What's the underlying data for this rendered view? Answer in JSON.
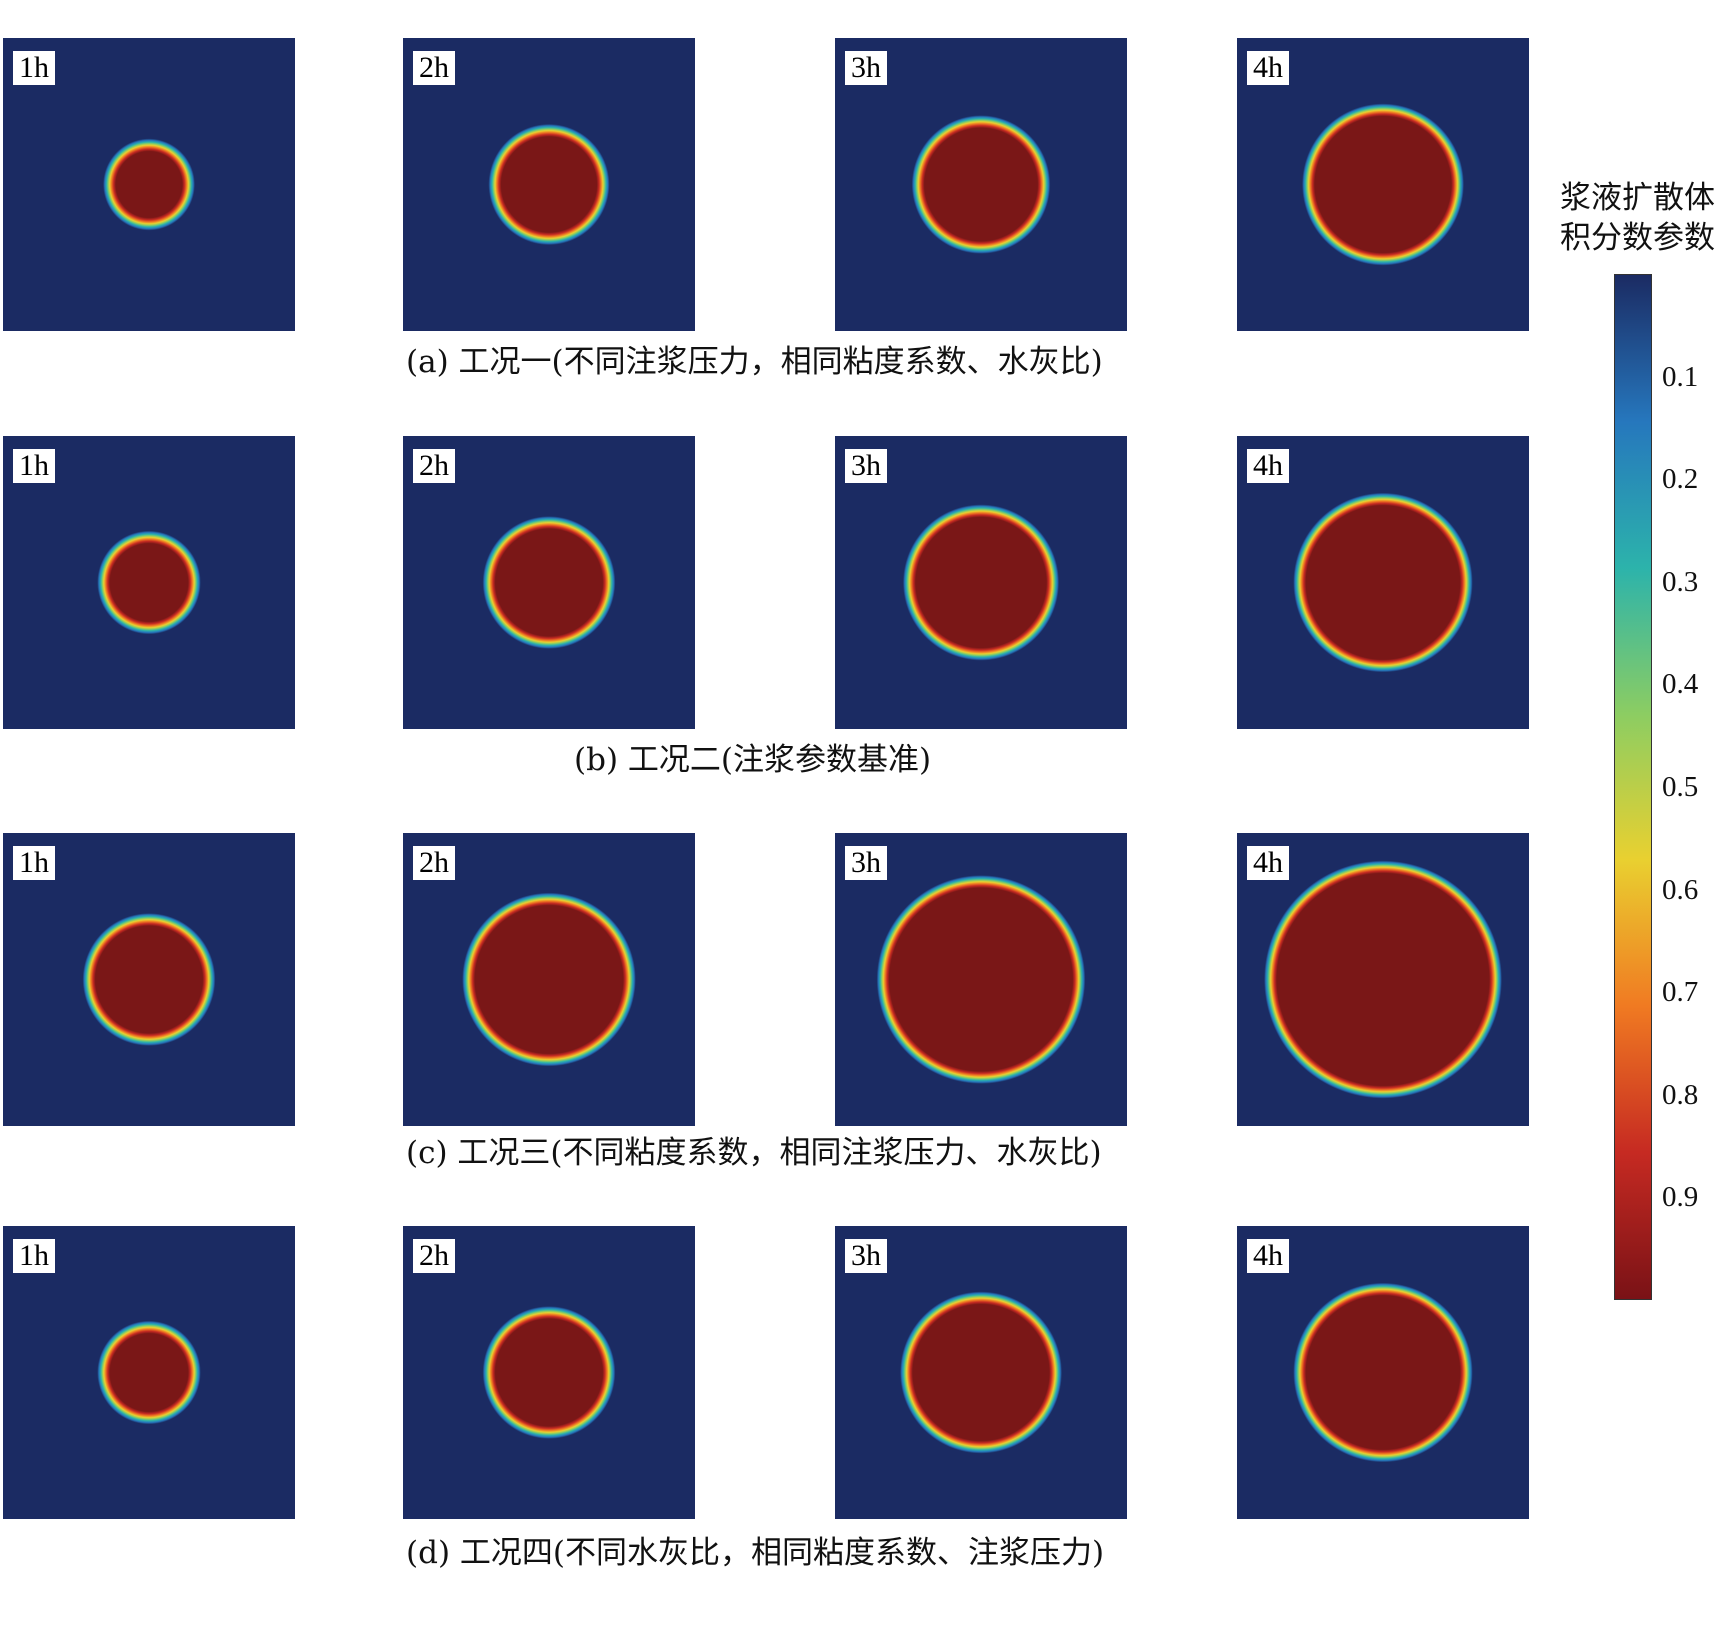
{
  "colors": {
    "background_phase": "#1b2b63",
    "grout_phase": "#7a1717",
    "colormap": [
      "#7a1216",
      "#c62a22",
      "#f07a22",
      "#e9d030",
      "#8ccd62",
      "#2cb3ab",
      "#2677bd",
      "#1b2b63"
    ]
  },
  "colorbar": {
    "title": "浆液扩散体积分数参数",
    "ticks": [
      "0.1",
      "0.2",
      "0.3",
      "0.4",
      "0.5",
      "0.6",
      "0.7",
      "0.8",
      "0.9"
    ],
    "tick_values": [
      0.1,
      0.2,
      0.3,
      0.4,
      0.5,
      0.6,
      0.7,
      0.8,
      0.9
    ]
  },
  "rows": [
    {
      "caption": "(a) 工况一(不同注浆压力，相同粘度系数、水灰比)",
      "panels": [
        {
          "time": "1h",
          "radius_fraction": 0.13
        },
        {
          "time": "2h",
          "radius_fraction": 0.18
        },
        {
          "time": "3h",
          "radius_fraction": 0.21
        },
        {
          "time": "4h",
          "radius_fraction": 0.25
        }
      ]
    },
    {
      "caption": "(b) 工况二(注浆参数基准)",
      "panels": [
        {
          "time": "1h",
          "radius_fraction": 0.15
        },
        {
          "time": "2h",
          "radius_fraction": 0.2
        },
        {
          "time": "3h",
          "radius_fraction": 0.24
        },
        {
          "time": "4h",
          "radius_fraction": 0.28
        }
      ]
    },
    {
      "caption": "(c) 工况三(不同粘度系数，相同注浆压力、水灰比)",
      "panels": [
        {
          "time": "1h",
          "radius_fraction": 0.2
        },
        {
          "time": "2h",
          "radius_fraction": 0.27
        },
        {
          "time": "3h",
          "radius_fraction": 0.33
        },
        {
          "time": "4h",
          "radius_fraction": 0.38
        }
      ]
    },
    {
      "caption": "(d) 工况四(不同水灰比，相同粘度系数、注浆压力)",
      "panels": [
        {
          "time": "1h",
          "radius_fraction": 0.15
        },
        {
          "time": "2h",
          "radius_fraction": 0.2
        },
        {
          "time": "3h",
          "radius_fraction": 0.25
        },
        {
          "time": "4h",
          "radius_fraction": 0.28
        }
      ]
    }
  ]
}
